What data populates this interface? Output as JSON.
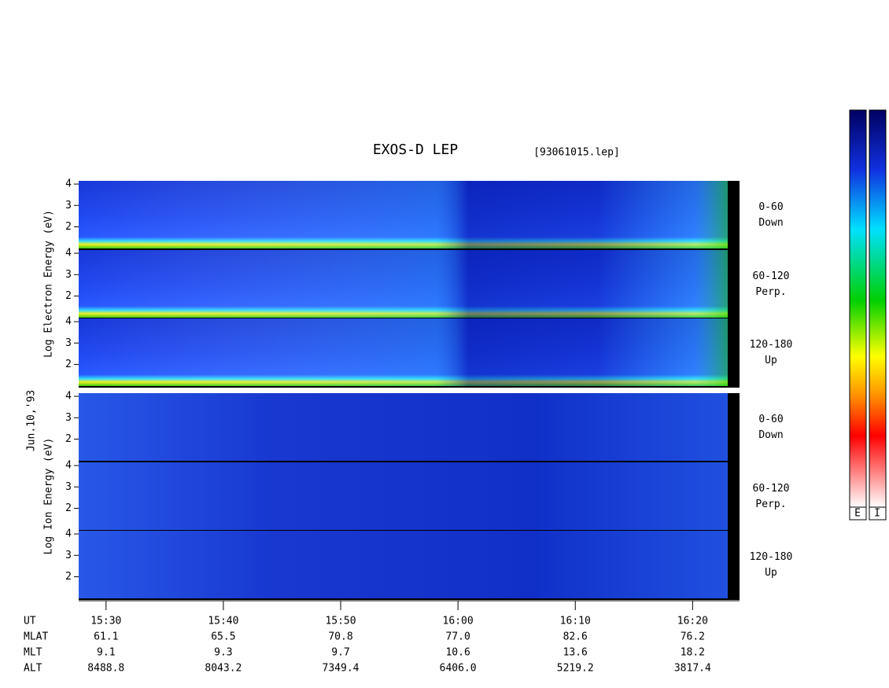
{
  "chart_data": {
    "type": "spectrogram",
    "title": "EXOS-D LEP",
    "file": "[93061015.lep]",
    "date": "Jun.10,'93",
    "groups": [
      {
        "ylabel": "Log Electron Energy (eV)",
        "panels": [
          {
            "angle": "0-60",
            "direction": "Down"
          },
          {
            "angle": "60-120",
            "direction": "Perp."
          },
          {
            "angle": "120-180",
            "direction": "Up"
          }
        ]
      },
      {
        "ylabel": "Log Ion Energy (eV)",
        "panels": [
          {
            "angle": "0-60",
            "direction": "Down"
          },
          {
            "angle": "60-120",
            "direction": "Perp."
          },
          {
            "angle": "120-180",
            "direction": "Up"
          }
        ]
      }
    ],
    "ylim": [
      0.95,
      4.15
    ],
    "yticks": [
      2,
      3,
      4
    ],
    "xlim": [
      "15:27:40",
      "16:24:00"
    ],
    "xticks": [
      "15:30",
      "15:40",
      "15:50",
      "16:00",
      "16:10",
      "16:20"
    ],
    "colorbar_labels": [
      "E",
      "I"
    ],
    "ephemeris": [
      {
        "name": "UT"
      },
      {
        "name": "MLAT",
        "values": [
          "61.1",
          "65.5",
          "70.8",
          "77.0",
          "82.6",
          "76.2"
        ]
      },
      {
        "name": "MLT",
        "values": [
          "9.1",
          "9.3",
          "9.7",
          "10.6",
          "13.6",
          "18.2"
        ]
      },
      {
        "name": "ALT",
        "values": [
          "8488.8",
          "8043.2",
          "7349.4",
          "6406.0",
          "5219.2",
          "3817.4"
        ]
      }
    ]
  }
}
